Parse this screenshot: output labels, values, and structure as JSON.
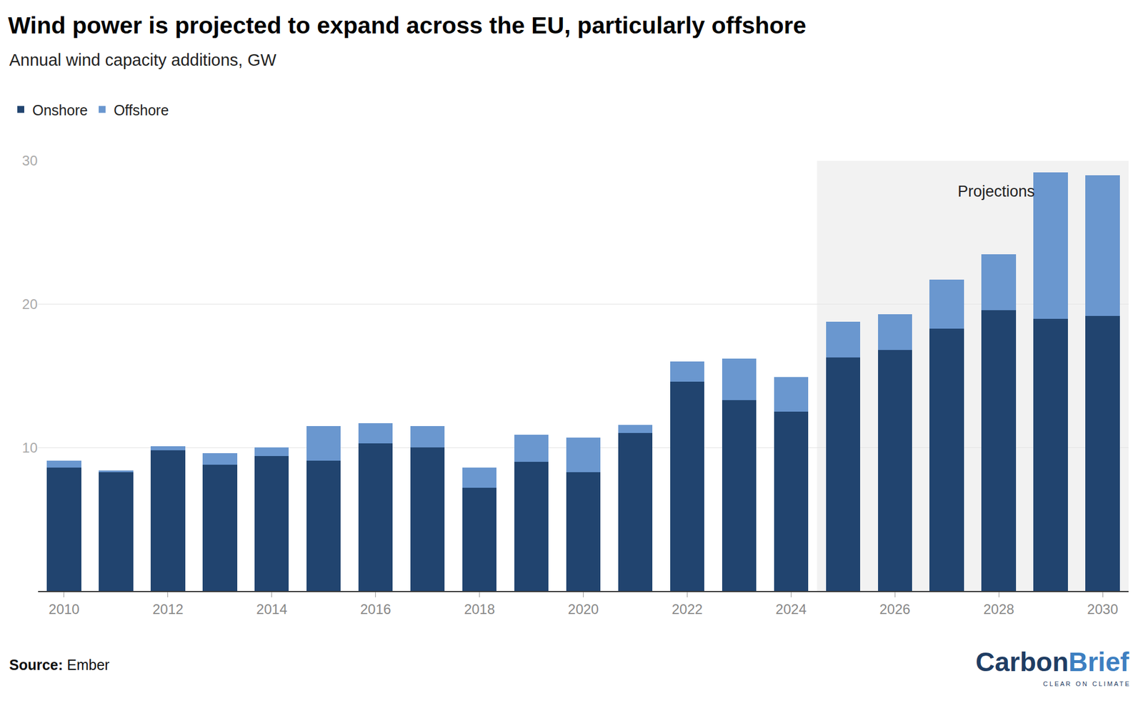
{
  "chart_data": {
    "type": "bar",
    "title": "Wind power is projected to expand across the EU, particularly offshore",
    "subtitle": "Annual wind capacity additions, GW",
    "x": [
      2010,
      2011,
      2012,
      2013,
      2014,
      2015,
      2016,
      2017,
      2018,
      2019,
      2020,
      2021,
      2022,
      2023,
      2024,
      2025,
      2026,
      2027,
      2028,
      2029,
      2030
    ],
    "series": [
      {
        "name": "Onshore",
        "color": "#21446f",
        "values": [
          8.6,
          8.3,
          9.8,
          8.8,
          9.4,
          9.1,
          10.3,
          10.0,
          7.2,
          9.0,
          8.3,
          11.0,
          14.6,
          13.3,
          12.5,
          16.3,
          16.8,
          18.3,
          19.6,
          19.0,
          19.2
        ]
      },
      {
        "name": "Offshore",
        "color": "#6a97cf",
        "values": [
          0.5,
          0.1,
          0.3,
          0.8,
          0.6,
          2.4,
          1.4,
          1.5,
          1.4,
          1.9,
          2.4,
          0.6,
          1.4,
          2.9,
          2.4,
          2.5,
          2.5,
          3.4,
          3.9,
          10.2,
          9.8
        ]
      }
    ],
    "stacked": true,
    "xlim": [
      2009.5,
      2030.5
    ],
    "xticks": [
      2010,
      2012,
      2014,
      2016,
      2018,
      2020,
      2022,
      2024,
      2026,
      2028,
      2030
    ],
    "ylim": [
      0,
      30
    ],
    "yticks": [
      10,
      20,
      30
    ],
    "grid": true,
    "legend": "top-left",
    "annotations": [
      {
        "text": "Projections",
        "x_start": 2025
      }
    ],
    "source_label": "Source:",
    "source": "Ember",
    "logo": [
      "Carbon",
      "Brief"
    ],
    "logo_tagline": "CLEAR ON CLIMATE"
  }
}
